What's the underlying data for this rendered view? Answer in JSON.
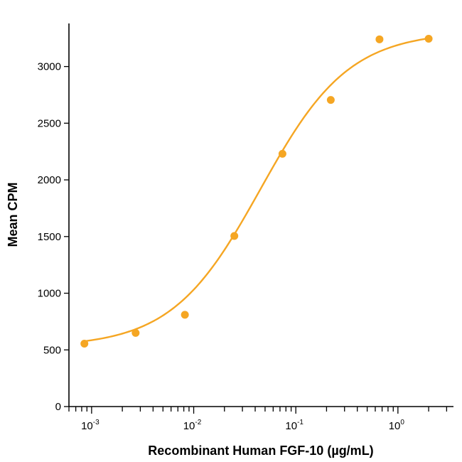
{
  "chart_data": {
    "type": "scatter",
    "xlabel": "Recombinant Human FGF-10 (µg/mL)",
    "ylabel": "Mean CPM",
    "x_scale": "log",
    "xlim": [
      0.0006,
      3.5
    ],
    "ylim": [
      0,
      3380
    ],
    "y_ticks": [
      0,
      500,
      1000,
      1500,
      2000,
      2500,
      3000
    ],
    "y_tick_labels": [
      "0",
      "500",
      "1000",
      "1500",
      "2000",
      "2500",
      "3000"
    ],
    "x_major_ticks": [
      0.001,
      0.01,
      0.1,
      1
    ],
    "x_tick_labels": [
      {
        "base": "10",
        "exp": "-3"
      },
      {
        "base": "10",
        "exp": "-2"
      },
      {
        "base": "10",
        "exp": "-1"
      },
      {
        "base": "10",
        "exp": "0"
      }
    ],
    "grid": false,
    "color": "#f5a623",
    "series": [
      {
        "points": [
          {
            "x": 0.00085,
            "y": 555
          },
          {
            "x": 0.0027,
            "y": 650
          },
          {
            "x": 0.0082,
            "y": 810
          },
          {
            "x": 0.025,
            "y": 1505
          },
          {
            "x": 0.074,
            "y": 2230
          },
          {
            "x": 0.22,
            "y": 2705
          },
          {
            "x": 0.66,
            "y": 3240
          },
          {
            "x": 2.0,
            "y": 3245
          }
        ],
        "fit": {
          "bottom": 525,
          "top": 3310,
          "ec50": 0.045,
          "hill": 1.0
        }
      }
    ]
  }
}
